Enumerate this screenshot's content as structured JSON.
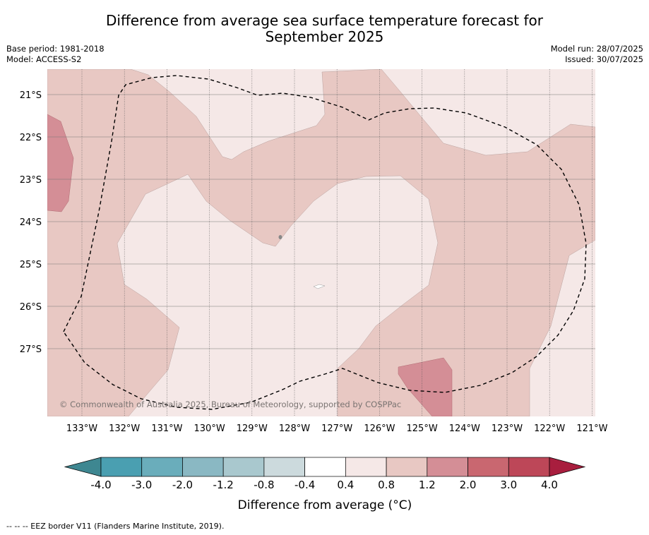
{
  "title": {
    "line1": "Difference from average sea surface temperature forecast for",
    "line2": "September 2025"
  },
  "meta_left": {
    "base_period": "Base period: 1981-2018",
    "model": "Model: ACCESS-S2"
  },
  "meta_right": {
    "model_run": "Model run: 28/07/2025",
    "issued": "Issued: 30/07/2025"
  },
  "copyright": "© Commonwealth of Australia 2025, Bureau of Meteorology, supported by COSPPac",
  "axes": {
    "lat_labels": [
      "21°S",
      "22°S",
      "23°S",
      "24°S",
      "25°S",
      "26°S",
      "27°S"
    ],
    "lon_labels": [
      "133°W",
      "132°W",
      "131°W",
      "130°W",
      "129°W",
      "128°W",
      "127°W",
      "126°W",
      "125°W",
      "124°W",
      "123°W",
      "122°W",
      "121°W"
    ]
  },
  "colorbar": {
    "ticks": [
      "-4.0",
      "-3.0",
      "-2.0",
      "-1.2",
      "-0.8",
      "-0.4",
      "0.4",
      "0.8",
      "1.2",
      "2.0",
      "3.0",
      "4.0"
    ],
    "colors": [
      "#4a9fb1",
      "#6aadbb",
      "#8ab8c3",
      "#a9c8ce",
      "#ccdadd",
      "#ffffff",
      "#f5e8e7",
      "#e8c8c3",
      "#d48e96",
      "#c96770",
      "#bd4758"
    ],
    "under_color": "#3e8791",
    "over_color": "#a81e3e",
    "label": "Difference from average (°C)"
  },
  "legend_footer": "--  --  -- EEZ border V11 (Flanders Marine Institute, 2019).",
  "map_colors": {
    "base": "#f5e8e7",
    "band_0_8_1_2": "#e8c8c3",
    "band_1_2_2_0": "#d48e96"
  }
}
